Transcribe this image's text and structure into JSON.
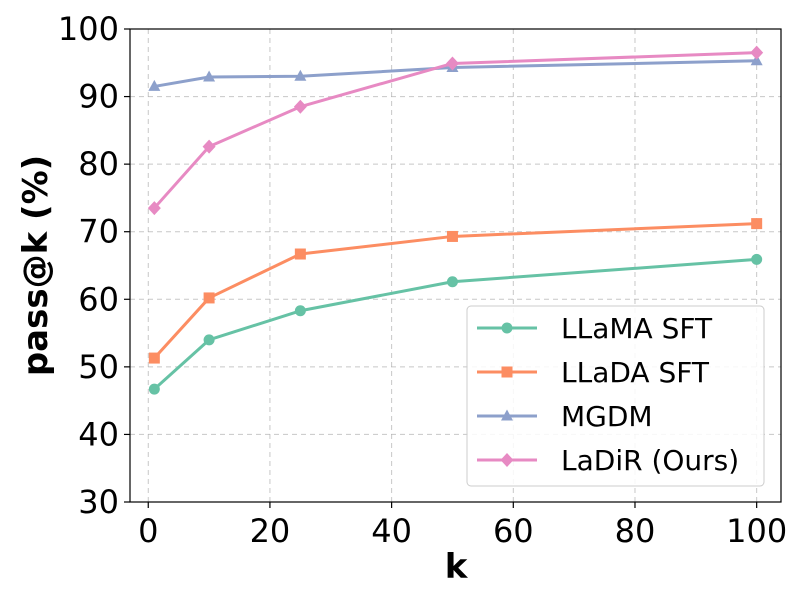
{
  "chart_data": {
    "type": "line",
    "title": "",
    "xlabel": "k",
    "ylabel": "pass@k (%)",
    "xlim": [
      -3,
      104
    ],
    "ylim": [
      30,
      100
    ],
    "xticks": [
      0,
      20,
      40,
      60,
      80,
      100
    ],
    "yticks": [
      30,
      40,
      50,
      60,
      70,
      80,
      90,
      100
    ],
    "grid": true,
    "legend_position": "lower-right",
    "x": [
      1,
      10,
      25,
      50,
      100
    ],
    "series": [
      {
        "name": "LLaMA SFT",
        "color": "#66c2a5",
        "marker": "circle",
        "values": [
          46.7,
          54.0,
          58.3,
          62.6,
          65.9
        ]
      },
      {
        "name": "LLaDA SFT",
        "color": "#fc8d62",
        "marker": "square",
        "values": [
          51.3,
          60.2,
          66.7,
          69.3,
          71.2
        ]
      },
      {
        "name": "MGDM",
        "color": "#8da0cb",
        "marker": "triangle",
        "values": [
          91.5,
          92.9,
          93.0,
          94.3,
          95.3
        ]
      },
      {
        "name": "LaDiR (Ours)",
        "color": "#e78ac3",
        "marker": "diamond",
        "values": [
          73.5,
          82.6,
          88.5,
          94.9,
          96.5
        ]
      }
    ]
  }
}
